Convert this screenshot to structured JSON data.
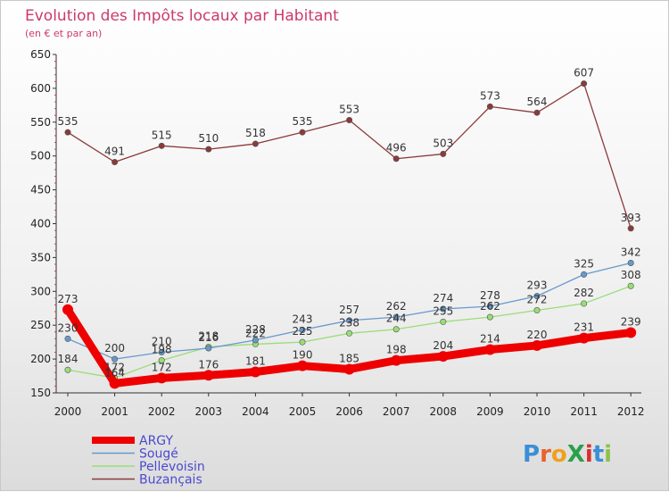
{
  "chart_data": {
    "type": "line",
    "title": "Evolution des Impôts locaux par Habitant",
    "subtitle": "(en € et par an)",
    "xlabel": "",
    "ylabel": "",
    "categories": [
      "2000",
      "2001",
      "2002",
      "2003",
      "2004",
      "2005",
      "2006",
      "2007",
      "2008",
      "2009",
      "2010",
      "2011",
      "2012"
    ],
    "ylim": [
      150,
      650
    ],
    "yticks": [
      150,
      200,
      250,
      300,
      350,
      400,
      450,
      500,
      550,
      600,
      650
    ],
    "grid": false,
    "legend_position": "bottom-left",
    "series": [
      {
        "name": "Buzançais",
        "color": "#8b3a3a",
        "values": [
          535,
          491,
          515,
          510,
          518,
          535,
          553,
          496,
          503,
          573,
          564,
          607,
          393
        ]
      },
      {
        "name": "Pellevoisin",
        "color": "#99dd77",
        "values": [
          184,
          172,
          198,
          218,
          222,
          225,
          238,
          244,
          255,
          262,
          272,
          282,
          308
        ]
      },
      {
        "name": "Sougé",
        "color": "#6699cc",
        "values": [
          230,
          200,
          210,
          216,
          228,
          243,
          257,
          262,
          274,
          278,
          293,
          325,
          342
        ]
      },
      {
        "name": "ARGY",
        "color": "#ee0000",
        "values": [
          273,
          164,
          172,
          176,
          181,
          190,
          185,
          198,
          204,
          214,
          220,
          231,
          239
        ]
      }
    ],
    "legend_order": [
      "ARGY",
      "Sougé",
      "Pellevoisin",
      "Buzançais"
    ]
  },
  "logo": {
    "text": "ProXiti",
    "letters": [
      "P",
      "r",
      "o",
      "X",
      "i",
      "t",
      "i"
    ],
    "colors": [
      "#3a8fd6",
      "#e8622c",
      "#f0a020",
      "#2aa04a",
      "#d9302c",
      "#3a8fd6",
      "#8bc34a"
    ]
  }
}
